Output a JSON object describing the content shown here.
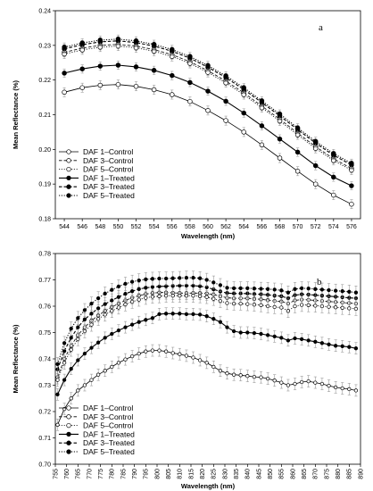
{
  "chart_data": [
    {
      "type": "line",
      "panel_label": "a",
      "xlabel": "Wavelength (nm)",
      "ylabel": "Mean Reflectance (%)",
      "xlim": [
        543,
        577
      ],
      "ylim": [
        0.18,
        0.24
      ],
      "x_ticks": [
        544,
        546,
        548,
        550,
        552,
        554,
        556,
        558,
        560,
        562,
        564,
        566,
        568,
        570,
        572,
        574,
        576
      ],
      "y_ticks": [
        0.18,
        0.19,
        0.2,
        0.21,
        0.22,
        0.23,
        0.24
      ],
      "grid": false,
      "legend_position": "bottom-left",
      "error_bars": true,
      "x": [
        544,
        546,
        548,
        550,
        552,
        554,
        556,
        558,
        560,
        562,
        564,
        566,
        568,
        570,
        572,
        574,
        576
      ],
      "series": [
        {
          "name": "DAF 1–Control",
          "style": "solid",
          "marker": "open",
          "error": 0.0013,
          "values": [
            0.2165,
            0.2178,
            0.2185,
            0.2187,
            0.2182,
            0.2172,
            0.2158,
            0.2138,
            0.2112,
            0.2083,
            0.205,
            0.2013,
            0.1975,
            0.1937,
            0.19,
            0.1868,
            0.1842
          ]
        },
        {
          "name": "DAF 3–Control",
          "style": "dashed",
          "marker": "open",
          "error": 0.0013,
          "values": [
            0.228,
            0.2292,
            0.23,
            0.2303,
            0.2298,
            0.2288,
            0.2273,
            0.2253,
            0.2227,
            0.2197,
            0.2163,
            0.2125,
            0.2087,
            0.2047,
            0.2008,
            0.1973,
            0.1945
          ]
        },
        {
          "name": "DAF 5–Control",
          "style": "dotted",
          "marker": "open",
          "error": 0.0013,
          "values": [
            0.2275,
            0.2287,
            0.2295,
            0.2298,
            0.2293,
            0.2283,
            0.2268,
            0.2248,
            0.2222,
            0.2192,
            0.2158,
            0.212,
            0.2082,
            0.2042,
            0.2003,
            0.1968,
            0.194
          ]
        },
        {
          "name": "DAF 1–Treated",
          "style": "solid",
          "marker": "filled",
          "error": 0.0012,
          "values": [
            0.222,
            0.2232,
            0.224,
            0.2243,
            0.2238,
            0.2228,
            0.2213,
            0.2193,
            0.2168,
            0.2139,
            0.2105,
            0.2068,
            0.203,
            0.1992,
            0.1953,
            0.192,
            0.1895
          ]
        },
        {
          "name": "DAF 3–Treated",
          "style": "dashed",
          "marker": "filled",
          "error": 0.0012,
          "values": [
            0.229,
            0.2302,
            0.231,
            0.2313,
            0.2308,
            0.2298,
            0.2283,
            0.2263,
            0.2237,
            0.2207,
            0.2173,
            0.2135,
            0.2097,
            0.2057,
            0.2018,
            0.1983,
            0.1955
          ]
        },
        {
          "name": "DAF 5–Treated",
          "style": "dotted",
          "marker": "filled",
          "error": 0.0012,
          "values": [
            0.2295,
            0.2307,
            0.2315,
            0.2318,
            0.2313,
            0.2303,
            0.2288,
            0.2268,
            0.2242,
            0.2212,
            0.2178,
            0.214,
            0.2102,
            0.2062,
            0.2023,
            0.1988,
            0.196
          ]
        }
      ]
    },
    {
      "type": "line",
      "panel_label": "b",
      "xlabel": "Wavelength (nm)",
      "ylabel": "Mean Reflectance (%)",
      "xlim": [
        755,
        890
      ],
      "ylim": [
        0.7,
        0.78
      ],
      "x_ticks": [
        755,
        760,
        765,
        770,
        775,
        780,
        785,
        790,
        795,
        800,
        805,
        810,
        815,
        820,
        825,
        830,
        835,
        840,
        845,
        850,
        855,
        860,
        865,
        870,
        875,
        880,
        885,
        890
      ],
      "y_ticks": [
        0.7,
        0.71,
        0.72,
        0.73,
        0.74,
        0.75,
        0.76,
        0.77,
        0.78
      ],
      "grid": false,
      "legend_position": "bottom-left",
      "error_bars": true,
      "x": [
        756,
        759,
        762,
        765,
        768,
        771,
        774,
        777,
        780,
        783,
        786,
        789,
        792,
        795,
        798,
        801,
        804,
        807,
        810,
        813,
        816,
        819,
        822,
        825,
        828,
        831,
        834,
        837,
        840,
        843,
        846,
        849,
        852,
        855,
        858,
        861,
        864,
        867,
        870,
        873,
        876,
        879,
        882,
        885,
        888
      ],
      "series": [
        {
          "name": "DAF 1–Control",
          "style": "solid",
          "marker": "open",
          "error": 0.0022,
          "values": [
            0.715,
            0.721,
            0.725,
            0.728,
            0.73,
            0.732,
            0.734,
            0.7355,
            0.737,
            0.7385,
            0.7398,
            0.741,
            0.742,
            0.7428,
            0.7432,
            0.7432,
            0.7428,
            0.7422,
            0.7418,
            0.7412,
            0.7405,
            0.7395,
            0.7385,
            0.737,
            0.7355,
            0.7345,
            0.734,
            0.7338,
            0.7335,
            0.7332,
            0.733,
            0.7325,
            0.7318,
            0.731,
            0.73,
            0.7305,
            0.7312,
            0.7315,
            0.731,
            0.7305,
            0.7298,
            0.7292,
            0.7288,
            0.7285,
            0.728
          ]
        },
        {
          "name": "DAF 3–Control",
          "style": "dashed",
          "marker": "open",
          "error": 0.0025,
          "values": [
            0.733,
            0.74,
            0.745,
            0.749,
            0.752,
            0.7545,
            0.7565,
            0.7582,
            0.7597,
            0.761,
            0.7622,
            0.7632,
            0.764,
            0.7646,
            0.765,
            0.7652,
            0.7652,
            0.7651,
            0.765,
            0.765,
            0.765,
            0.765,
            0.7648,
            0.7644,
            0.7638,
            0.7632,
            0.763,
            0.763,
            0.763,
            0.7628,
            0.7626,
            0.7623,
            0.762,
            0.7618,
            0.761,
            0.7622,
            0.7625,
            0.7624,
            0.7622,
            0.762,
            0.7618,
            0.7616,
            0.7614,
            0.7612,
            0.761
          ]
        },
        {
          "name": "DAF 5–Control",
          "style": "dotted",
          "marker": "open",
          "error": 0.0025,
          "values": [
            0.732,
            0.7385,
            0.7435,
            0.7475,
            0.7505,
            0.753,
            0.7552,
            0.7568,
            0.7582,
            0.7595,
            0.7607,
            0.7617,
            0.7625,
            0.7632,
            0.7636,
            0.7638,
            0.764,
            0.764,
            0.764,
            0.764,
            0.764,
            0.7638,
            0.7635,
            0.7628,
            0.762,
            0.7612,
            0.761,
            0.761,
            0.7608,
            0.7606,
            0.7604,
            0.76,
            0.7597,
            0.7595,
            0.7582,
            0.76,
            0.7605,
            0.7604,
            0.7602,
            0.76,
            0.7598,
            0.7596,
            0.7594,
            0.7592,
            0.759
          ]
        },
        {
          "name": "DAF 1–Treated",
          "style": "solid",
          "marker": "filled",
          "error": 0.0022,
          "values": [
            0.7265,
            0.732,
            0.7362,
            0.7395,
            0.742,
            0.7442,
            0.7462,
            0.748,
            0.7495,
            0.7508,
            0.752,
            0.753,
            0.754,
            0.7548,
            0.7555,
            0.757,
            0.7572,
            0.7572,
            0.7572,
            0.757,
            0.757,
            0.7568,
            0.7562,
            0.7552,
            0.754,
            0.752,
            0.7505,
            0.75,
            0.75,
            0.7498,
            0.7495,
            0.749,
            0.7485,
            0.748,
            0.747,
            0.7478,
            0.7475,
            0.747,
            0.7465,
            0.746,
            0.7455,
            0.745,
            0.7448,
            0.7445,
            0.744
          ]
        },
        {
          "name": "DAF 3–Treated",
          "style": "dashed",
          "marker": "filled",
          "error": 0.0025,
          "values": [
            0.736,
            0.743,
            0.748,
            0.752,
            0.755,
            0.7572,
            0.7592,
            0.7608,
            0.7622,
            0.7635,
            0.7647,
            0.7657,
            0.7665,
            0.767,
            0.7673,
            0.7675,
            0.7676,
            0.7677,
            0.7678,
            0.7678,
            0.7678,
            0.7676,
            0.7672,
            0.7664,
            0.7656,
            0.765,
            0.7648,
            0.7648,
            0.7648,
            0.7646,
            0.7645,
            0.7643,
            0.764,
            0.7638,
            0.763,
            0.7642,
            0.7645,
            0.7644,
            0.7642,
            0.764,
            0.7638,
            0.7636,
            0.7634,
            0.7632,
            0.763
          ]
        },
        {
          "name": "DAF 5–Treated",
          "style": "dotted",
          "marker": "filled",
          "error": 0.0025,
          "values": [
            0.738,
            0.746,
            0.7515,
            0.7555,
            0.7585,
            0.761,
            0.763,
            0.7648,
            0.7662,
            0.7675,
            0.7685,
            0.7693,
            0.7698,
            0.7702,
            0.7704,
            0.7705,
            0.7705,
            0.7706,
            0.7707,
            0.7708,
            0.7708,
            0.7706,
            0.77,
            0.769,
            0.768,
            0.767,
            0.7668,
            0.7668,
            0.7668,
            0.7667,
            0.7666,
            0.7665,
            0.7663,
            0.766,
            0.7652,
            0.7665,
            0.7668,
            0.7667,
            0.7665,
            0.7663,
            0.7661,
            0.7659,
            0.7657,
            0.7655,
            0.7652
          ]
        }
      ]
    }
  ]
}
